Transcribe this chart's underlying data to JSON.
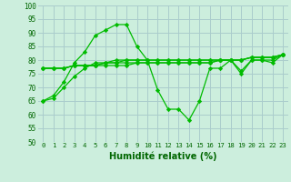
{
  "xlabel": "Humidité relative (%)",
  "background_color": "#cceedd",
  "grid_color": "#aacccc",
  "line_color": "#00bb00",
  "xlim": [
    -0.5,
    23.5
  ],
  "ylim": [
    50,
    100
  ],
  "yticks": [
    50,
    55,
    60,
    65,
    70,
    75,
    80,
    85,
    90,
    95,
    100
  ],
  "xticks": [
    0,
    1,
    2,
    3,
    4,
    5,
    6,
    7,
    8,
    9,
    10,
    11,
    12,
    13,
    14,
    15,
    16,
    17,
    18,
    19,
    20,
    21,
    22,
    23
  ],
  "lines": [
    [
      65,
      67,
      72,
      79,
      83,
      89,
      91,
      93,
      93,
      85,
      80,
      69,
      62,
      62,
      58,
      65,
      77,
      77,
      80,
      75,
      80,
      80,
      79,
      82
    ],
    [
      77,
      77,
      77,
      78,
      78,
      78,
      78,
      78,
      78,
      79,
      79,
      79,
      79,
      79,
      79,
      79,
      79,
      80,
      80,
      80,
      81,
      81,
      81,
      82
    ],
    [
      77,
      77,
      77,
      78,
      78,
      78,
      79,
      79,
      79,
      79,
      79,
      79,
      79,
      79,
      79,
      79,
      79,
      80,
      80,
      80,
      81,
      81,
      81,
      82
    ],
    [
      77,
      77,
      77,
      78,
      78,
      78,
      79,
      79,
      80,
      80,
      80,
      80,
      80,
      80,
      80,
      80,
      80,
      80,
      80,
      80,
      81,
      81,
      81,
      82
    ],
    [
      65,
      66,
      70,
      74,
      77,
      79,
      79,
      80,
      80,
      80,
      80,
      80,
      80,
      80,
      80,
      80,
      80,
      80,
      80,
      76,
      80,
      80,
      80,
      82
    ]
  ]
}
